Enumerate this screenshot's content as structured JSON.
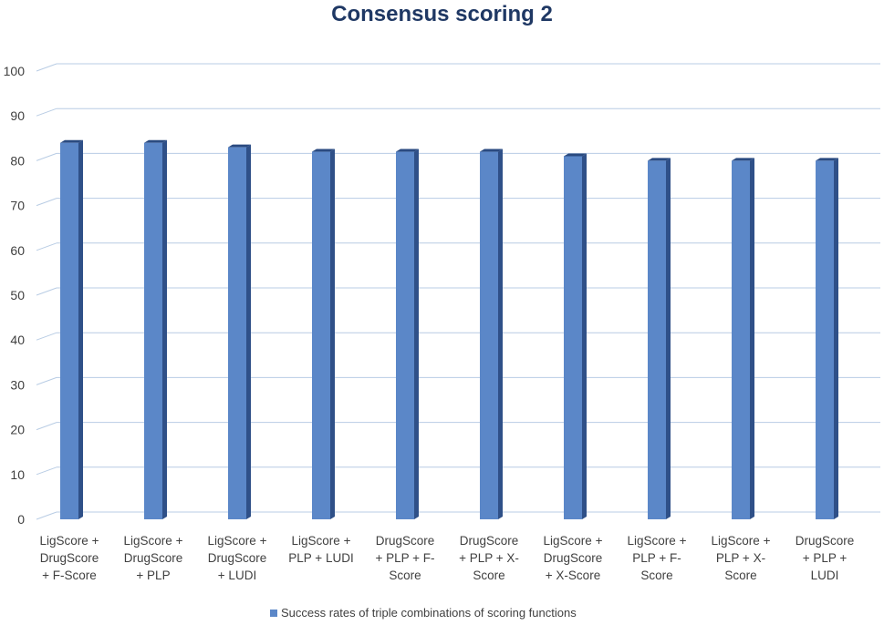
{
  "chart_data": {
    "type": "bar",
    "title": "Consensus scoring 2",
    "categories": [
      [
        "LigScore +",
        "DrugScore",
        "+ F-Score"
      ],
      [
        "LigScore +",
        "DrugScore",
        "+ PLP"
      ],
      [
        "LigScore +",
        "DrugScore",
        "+ LUDI"
      ],
      [
        "LigScore +",
        "PLP + LUDI"
      ],
      [
        "DrugScore",
        "+ PLP + F-",
        "Score"
      ],
      [
        "DrugScore",
        "+ PLP + X-",
        "Score"
      ],
      [
        "LigScore +",
        "DrugScore",
        "+ X-Score"
      ],
      [
        "LigScore +",
        "PLP + F-",
        "Score"
      ],
      [
        "LigScore +",
        "PLP + X-",
        "Score"
      ],
      [
        "DrugScore",
        "+ PLP +",
        "LUDI"
      ]
    ],
    "series": [
      {
        "name": "Success rates of triple combinations of scoring functions",
        "values": [
          84,
          84,
          83,
          82,
          82,
          82,
          81,
          80,
          80,
          80
        ]
      }
    ],
    "yticks": [
      "0",
      "10",
      "20",
      "30",
      "40",
      "50",
      "60",
      "70",
      "80",
      "90",
      "100"
    ],
    "ylim": [
      0,
      100
    ],
    "xlabel": "",
    "ylabel": "",
    "grid": true,
    "legend": "bottom",
    "colors": {
      "bar_front": "#5b87c8",
      "bar_side": "#2f5088",
      "bar_top": "#2a4a80",
      "grid": "#b8cce4",
      "title": "#1f3864"
    }
  }
}
